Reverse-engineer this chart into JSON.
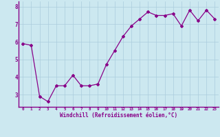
{
  "x": [
    0,
    1,
    2,
    3,
    4,
    5,
    6,
    7,
    8,
    9,
    10,
    11,
    12,
    13,
    14,
    15,
    16,
    17,
    18,
    19,
    20,
    21,
    22,
    23
  ],
  "y": [
    5.9,
    5.8,
    2.9,
    2.6,
    3.5,
    3.5,
    4.1,
    3.5,
    3.5,
    3.6,
    4.7,
    5.5,
    6.3,
    6.9,
    7.3,
    7.7,
    7.5,
    7.5,
    7.6,
    6.9,
    7.8,
    7.2,
    7.8,
    7.3
  ],
  "line_color": "#880088",
  "marker": "D",
  "marker_size": 2.0,
  "bg_color": "#cce8f0",
  "grid_color": "#aaccdd",
  "xlabel": "Windchill (Refroidissement éolien,°C)",
  "xlabel_color": "#880088",
  "tick_color": "#880088",
  "axis_color": "#880088",
  "ylim": [
    2.3,
    8.3
  ],
  "xlim": [
    -0.5,
    23.5
  ],
  "yticks": [
    3,
    4,
    5,
    6,
    7,
    8
  ],
  "xticks": [
    0,
    1,
    2,
    3,
    4,
    5,
    6,
    7,
    8,
    9,
    10,
    11,
    12,
    13,
    14,
    15,
    16,
    17,
    18,
    19,
    20,
    21,
    22,
    23
  ]
}
